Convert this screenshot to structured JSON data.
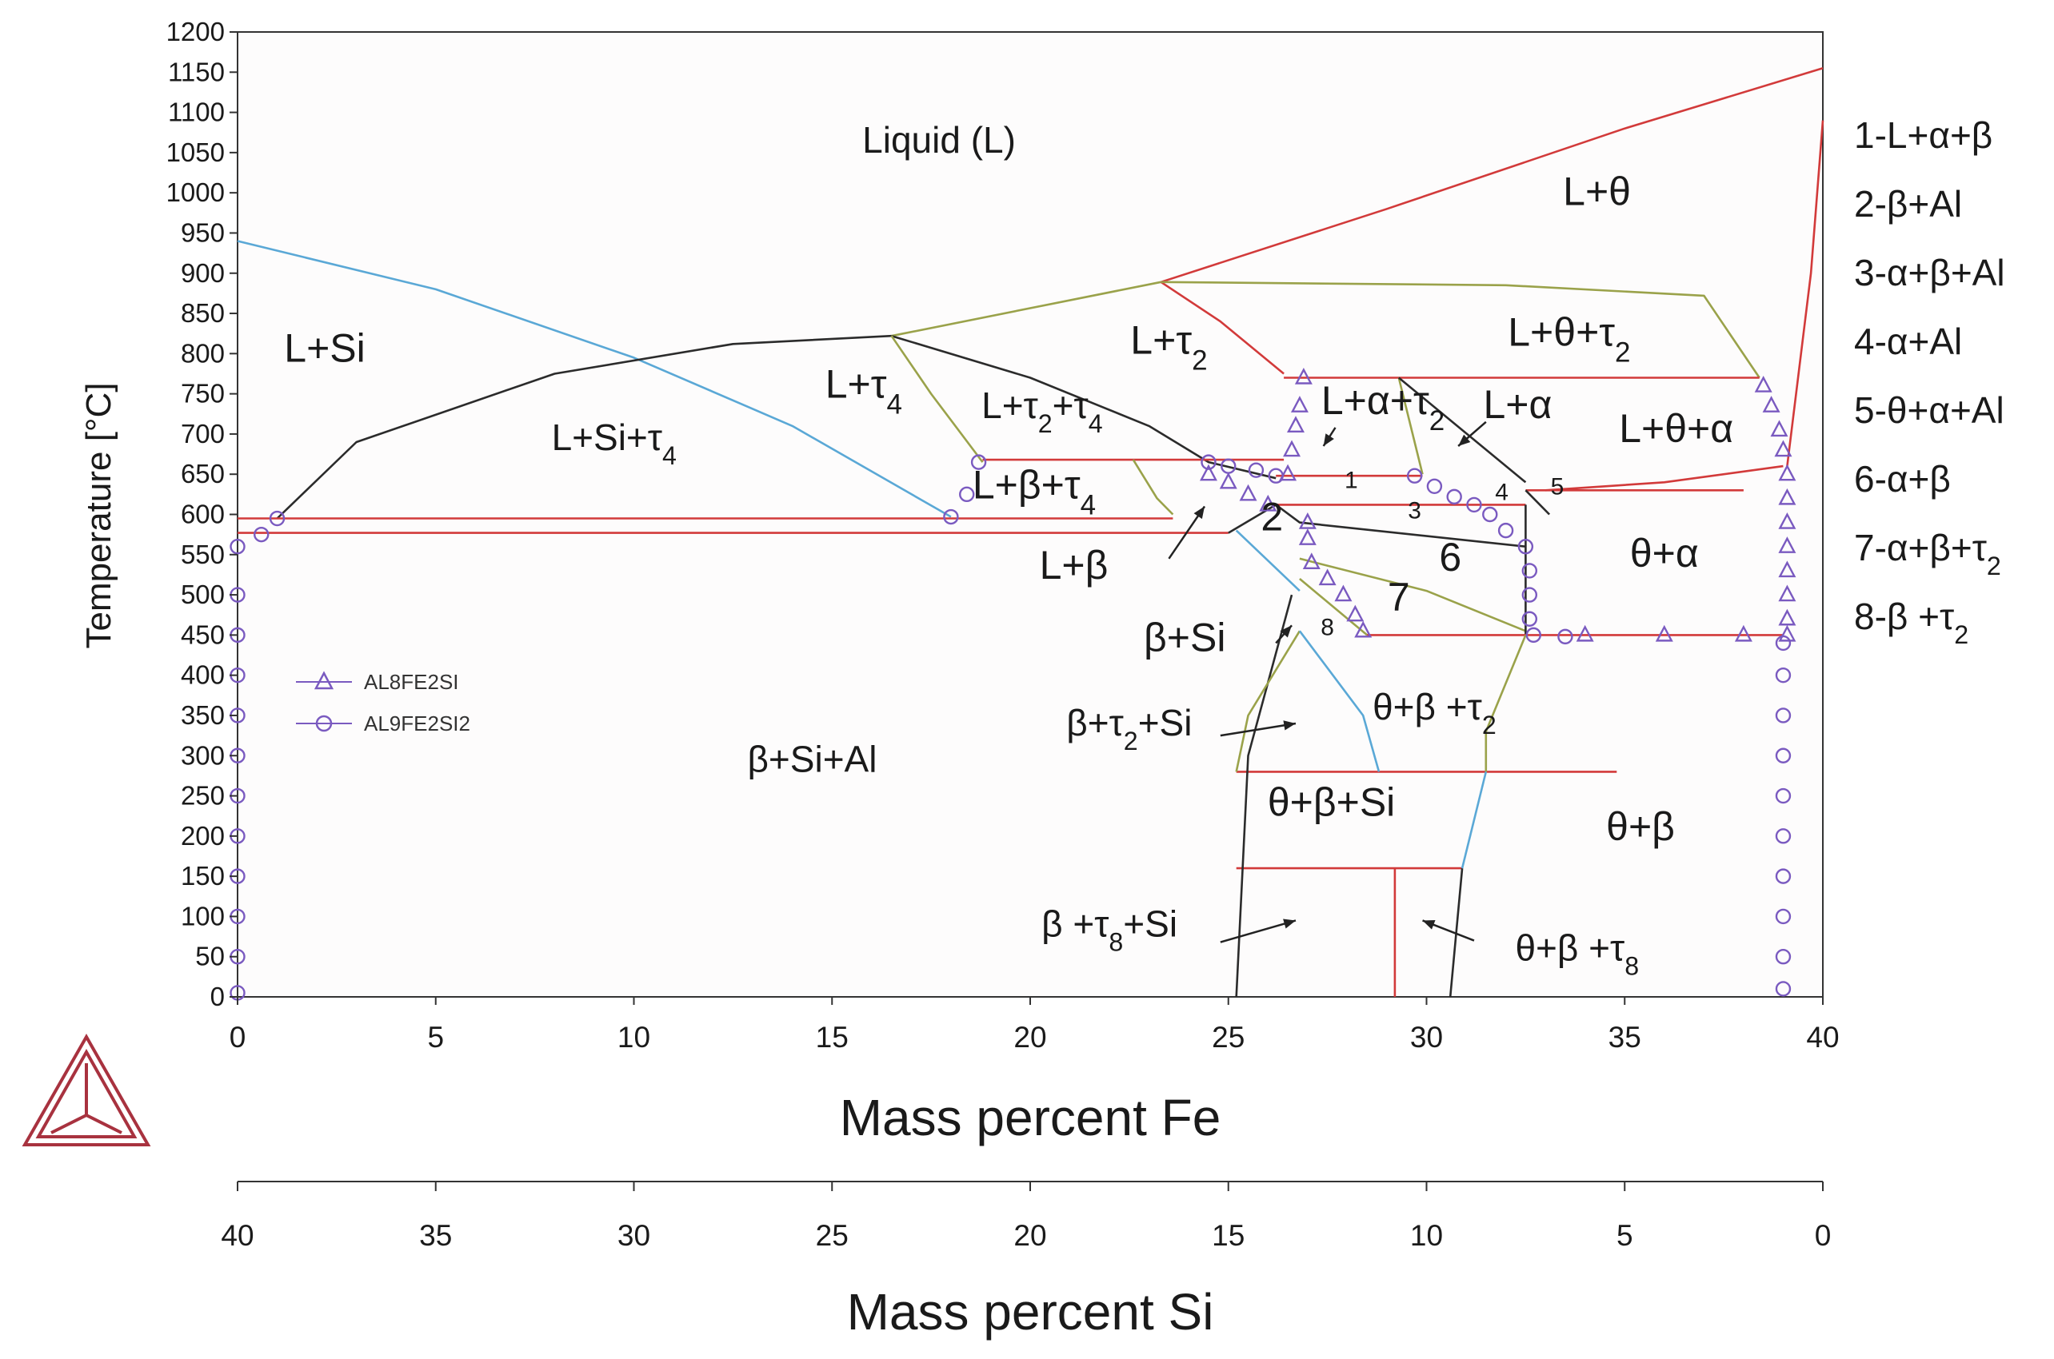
{
  "colors": {
    "frame": "#333333",
    "red": "#d23a3a",
    "blue": "#5aa8d6",
    "olive": "#9aa24a",
    "dark": "#2b2b2b",
    "purple": "#7a5ac0",
    "logo": "#a8323f"
  },
  "chart_data": {
    "type": "line",
    "title": "",
    "xlabel": "Mass percent Fe",
    "x2label": "Mass percent Si",
    "ylabel": "Temperature [°C]",
    "xlim": [
      0,
      40
    ],
    "ylim": [
      0,
      1200
    ],
    "x_ticks": [
      "0",
      "5",
      "10",
      "15",
      "20",
      "25",
      "30",
      "35",
      "40"
    ],
    "x2_ticks": [
      "40",
      "35",
      "30",
      "25",
      "20",
      "15",
      "10",
      "5",
      "0"
    ],
    "y_ticks": [
      "0",
      "50",
      "100",
      "150",
      "200",
      "250",
      "300",
      "350",
      "400",
      "450",
      "500",
      "550",
      "600",
      "650",
      "700",
      "750",
      "800",
      "850",
      "900",
      "950",
      "1000",
      "1050",
      "1100",
      "1150",
      "1200"
    ],
    "legend": [
      {
        "name": "AL8FE2SI",
        "marker": "triangle"
      },
      {
        "name": "AL9FE2SI2",
        "marker": "circle"
      }
    ],
    "series": [
      {
        "name": "liquidus-si",
        "color": "blue",
        "points": [
          [
            0,
            940
          ],
          [
            5,
            880
          ],
          [
            10,
            795
          ],
          [
            14,
            710
          ],
          [
            18,
            597
          ]
        ]
      },
      {
        "name": "l-si-t4",
        "color": "dark",
        "points": [
          [
            1,
            595
          ],
          [
            3,
            690
          ],
          [
            8,
            775
          ],
          [
            12.5,
            812
          ],
          [
            16.5,
            822
          ]
        ]
      },
      {
        "name": "liquidus-t4",
        "color": "olive",
        "points": [
          [
            16.5,
            822
          ],
          [
            23.3,
            889
          ]
        ]
      },
      {
        "name": "liquidus-t2",
        "color": "red",
        "points": [
          [
            23.3,
            889
          ],
          [
            29,
            980
          ],
          [
            35,
            1080
          ],
          [
            40,
            1155
          ]
        ]
      },
      {
        "name": "right-liquidus",
        "color": "red",
        "points": [
          [
            39.1,
            660
          ],
          [
            39.7,
            900
          ],
          [
            40,
            1090
          ]
        ]
      },
      {
        "name": "t2-l-boundary",
        "color": "red",
        "points": [
          [
            23.3,
            889
          ],
          [
            24.8,
            840
          ],
          [
            26.4,
            775
          ]
        ]
      },
      {
        "name": "l-theta-t2-top",
        "color": "olive",
        "points": [
          [
            23.3,
            889
          ],
          [
            32,
            885
          ],
          [
            37,
            872
          ],
          [
            38.4,
            770
          ]
        ]
      },
      {
        "name": "t4-t2-boundary",
        "color": "dark",
        "points": [
          [
            16.5,
            822
          ],
          [
            20,
            770
          ],
          [
            23,
            710
          ],
          [
            24.5,
            665
          ],
          [
            26.2,
            645
          ]
        ]
      },
      {
        "name": "t4-b",
        "color": "olive",
        "points": [
          [
            16.5,
            822
          ],
          [
            17.5,
            750
          ],
          [
            18.8,
            665
          ]
        ]
      },
      {
        "name": "horiz-668",
        "color": "red",
        "points": [
          [
            18.8,
            668
          ],
          [
            26.4,
            668
          ]
        ]
      },
      {
        "name": "l-beta-edge",
        "color": "olive",
        "points": [
          [
            22.6,
            668
          ],
          [
            23.2,
            620
          ],
          [
            23.6,
            600
          ]
        ]
      },
      {
        "name": "l-alpha-tie",
        "color": "red",
        "points": [
          [
            26.4,
            770
          ],
          [
            38.4,
            770
          ]
        ]
      },
      {
        "name": "alpha-l-1",
        "color": "olive",
        "points": [
          [
            29.3,
            770
          ],
          [
            29.9,
            650
          ]
        ]
      },
      {
        "name": "alpha-l-2",
        "color": "dark",
        "points": [
          [
            29.3,
            770
          ],
          [
            32.5,
            640
          ]
        ]
      },
      {
        "name": "horiz-648",
        "color": "red",
        "points": [
          [
            26.2,
            648
          ],
          [
            29.9,
            648
          ]
        ]
      },
      {
        "name": "horiz-630",
        "color": "red",
        "points": [
          [
            32.5,
            630
          ],
          [
            38,
            630
          ]
        ]
      },
      {
        "name": "theta-alpha-right",
        "color": "red",
        "points": [
          [
            33,
            630
          ],
          [
            36,
            640
          ],
          [
            39,
            660
          ]
        ]
      },
      {
        "name": "horiz-612",
        "color": "red",
        "points": [
          [
            26.2,
            612
          ],
          [
            32.5,
            612
          ]
        ]
      },
      {
        "name": "horiz-595",
        "color": "red",
        "points": [
          [
            0,
            595
          ],
          [
            23.6,
            595
          ]
        ]
      },
      {
        "name": "horiz-577",
        "color": "red",
        "points": [
          [
            0,
            577
          ],
          [
            25,
            577
          ]
        ]
      },
      {
        "name": "beta-si-blue",
        "color": "blue",
        "points": [
          [
            25.2,
            580
          ],
          [
            26.8,
            505
          ]
        ]
      },
      {
        "name": "phase-2-lines",
        "color": "dark",
        "points": [
          [
            25,
            577
          ],
          [
            26.2,
            612
          ],
          [
            26.8,
            590
          ],
          [
            32.5,
            560
          ]
        ]
      },
      {
        "name": "phase-6-lower",
        "color": "olive",
        "points": [
          [
            26.8,
            545
          ],
          [
            30,
            505
          ],
          [
            32.5,
            455
          ]
        ]
      },
      {
        "name": "phase-7-lower",
        "color": "olive",
        "points": [
          [
            26.8,
            520
          ],
          [
            28.5,
            450
          ]
        ]
      },
      {
        "name": "alpha-right-boundary",
        "color": "dark",
        "points": [
          [
            32.5,
            612
          ],
          [
            32.5,
            450
          ]
        ]
      },
      {
        "name": "alpha-right-2",
        "color": "dark",
        "points": [
          [
            32.5,
            630
          ],
          [
            33.1,
            600
          ]
        ]
      },
      {
        "name": "horiz-450",
        "color": "red",
        "points": [
          [
            28.5,
            450
          ],
          [
            39,
            450
          ]
        ]
      },
      {
        "name": "horiz-280",
        "color": "red",
        "points": [
          [
            25.2,
            280
          ],
          [
            34.8,
            280
          ]
        ]
      },
      {
        "name": "horiz-160",
        "color": "red",
        "points": [
          [
            25.2,
            160
          ],
          [
            30.9,
            160
          ]
        ]
      },
      {
        "name": "vert-25",
        "color": "dark",
        "points": [
          [
            26.6,
            500
          ],
          [
            25.5,
            300
          ],
          [
            25.2,
            0
          ]
        ]
      },
      {
        "name": "vert-29",
        "color": "red",
        "points": [
          [
            29.2,
            160
          ],
          [
            29.2,
            0
          ]
        ]
      },
      {
        "name": "vert-30-6",
        "color": "dark",
        "points": [
          [
            30.9,
            160
          ],
          [
            30.6,
            0
          ]
        ]
      },
      {
        "name": "t2-si-left",
        "color": "olive",
        "points": [
          [
            26.8,
            455
          ],
          [
            25.5,
            350
          ],
          [
            25.2,
            280
          ]
        ]
      },
      {
        "name": "t2-si-right",
        "color": "blue",
        "points": [
          [
            26.8,
            455
          ],
          [
            28.4,
            350
          ],
          [
            28.8,
            280
          ]
        ]
      },
      {
        "name": "theta-beta-t2-right",
        "color": "olive",
        "points": [
          [
            32.5,
            450
          ],
          [
            31.5,
            330
          ],
          [
            31.5,
            280
          ]
        ]
      },
      {
        "name": "theta-beta-blue",
        "color": "blue",
        "points": [
          [
            31.5,
            280
          ],
          [
            30.9,
            160
          ]
        ]
      }
    ],
    "markers": {
      "al8fe2si": [
        [
          24.5,
          650
        ],
        [
          25.0,
          640
        ],
        [
          25.5,
          625
        ],
        [
          26.0,
          612
        ],
        [
          26.5,
          650
        ],
        [
          26.6,
          680
        ],
        [
          26.7,
          710
        ],
        [
          26.8,
          735
        ],
        [
          26.9,
          770
        ],
        [
          27.0,
          590
        ],
        [
          27.0,
          570
        ],
        [
          27.1,
          540
        ],
        [
          27.5,
          520
        ],
        [
          27.9,
          500
        ],
        [
          28.2,
          475
        ],
        [
          28.4,
          455
        ],
        [
          34,
          450
        ],
        [
          36,
          450
        ],
        [
          38,
          450
        ],
        [
          38.5,
          760
        ],
        [
          38.7,
          735
        ],
        [
          38.9,
          705
        ],
        [
          39.0,
          680
        ],
        [
          39.1,
          650
        ],
        [
          39.1,
          620
        ],
        [
          39.1,
          590
        ],
        [
          39.1,
          560
        ],
        [
          39.1,
          530
        ],
        [
          39.1,
          500
        ],
        [
          39.1,
          470
        ],
        [
          39.1,
          450
        ]
      ],
      "al9fe2si2": [
        [
          0.6,
          575
        ],
        [
          1.0,
          595
        ],
        [
          18,
          597
        ],
        [
          18.4,
          625
        ],
        [
          18.7,
          665
        ],
        [
          24.5,
          665
        ],
        [
          25.0,
          660
        ],
        [
          25.7,
          655
        ],
        [
          26.2,
          648
        ],
        [
          29.7,
          648
        ],
        [
          30.2,
          635
        ],
        [
          30.7,
          622
        ],
        [
          31.2,
          612
        ],
        [
          31.6,
          600
        ],
        [
          32.0,
          580
        ],
        [
          32.5,
          560
        ],
        [
          32.6,
          530
        ],
        [
          32.6,
          500
        ],
        [
          32.6,
          470
        ],
        [
          32.7,
          450
        ],
        [
          33.5,
          448
        ],
        [
          39.0,
          440
        ],
        [
          39.0,
          400
        ],
        [
          39.0,
          350
        ],
        [
          39.0,
          300
        ],
        [
          39.0,
          250
        ],
        [
          39.0,
          200
        ],
        [
          39.0,
          150
        ],
        [
          39.0,
          100
        ],
        [
          39.0,
          50
        ],
        [
          39.0,
          10
        ],
        [
          0,
          560
        ],
        [
          0,
          500
        ],
        [
          0,
          450
        ],
        [
          0,
          400
        ],
        [
          0,
          350
        ],
        [
          0,
          300
        ],
        [
          0,
          250
        ],
        [
          0,
          200
        ],
        [
          0,
          150
        ],
        [
          0,
          100
        ],
        [
          0,
          50
        ],
        [
          0,
          5
        ]
      ]
    },
    "regions": [
      {
        "text": "Liquid (L)",
        "x": 17.7,
        "y": 1050
      },
      {
        "text": "L+θ",
        "x": 34.3,
        "y": 985
      },
      {
        "text": "L+Si",
        "x": 2.2,
        "y": 790
      },
      {
        "text": "L+Si+τ4",
        "x": 9.5,
        "y": 680
      },
      {
        "text": "L+τ4",
        "x": 15.8,
        "y": 745
      },
      {
        "text": "L+τ2",
        "x": 23.5,
        "y": 800
      },
      {
        "text": "L+τ2+τ4",
        "x": 20.3,
        "y": 720
      },
      {
        "text": "L+β+τ4",
        "x": 20.1,
        "y": 620
      },
      {
        "text": "L+θ+τ2",
        "x": 33.6,
        "y": 810
      },
      {
        "text": "L+α+τ2",
        "x": 28.9,
        "y": 725
      },
      {
        "text": "L+α",
        "x": 32.3,
        "y": 720
      },
      {
        "text": "L+θ+α",
        "x": 36.3,
        "y": 690
      },
      {
        "text": "L+β",
        "x": 21.1,
        "y": 520
      },
      {
        "text": "θ+α",
        "x": 36.0,
        "y": 535
      },
      {
        "text": "6",
        "x": 30.6,
        "y": 530
      },
      {
        "text": "7",
        "x": 29.3,
        "y": 480
      },
      {
        "text": "2",
        "x": 26.1,
        "y": 580
      },
      {
        "text": "β+Si",
        "x": 23.9,
        "y": 430
      },
      {
        "text": "β+τ2+Si",
        "x": 22.5,
        "y": 325
      },
      {
        "text": "θ+β +τ2",
        "x": 30.2,
        "y": 345
      },
      {
        "text": "β+Si+Al",
        "x": 14.5,
        "y": 280
      },
      {
        "text": "θ+β+Si",
        "x": 27.6,
        "y": 225
      },
      {
        "text": "θ+β",
        "x": 35.4,
        "y": 195
      },
      {
        "text": "β +τ8+Si",
        "x": 22.0,
        "y": 75
      },
      {
        "text": "θ+β +τ8",
        "x": 33.8,
        "y": 45
      }
    ],
    "small_labels": [
      {
        "text": "1",
        "x": 28.1,
        "y": 633
      },
      {
        "text": "3",
        "x": 29.7,
        "y": 595
      },
      {
        "text": "4",
        "x": 31.9,
        "y": 618
      },
      {
        "text": "5",
        "x": 33.3,
        "y": 625
      },
      {
        "text": "8",
        "x": 27.5,
        "y": 450
      }
    ],
    "arrows": [
      {
        "from": [
          23.5,
          545
        ],
        "to": [
          24.4,
          610
        ]
      },
      {
        "from": [
          27.7,
          708
        ],
        "to": [
          27.4,
          685
        ]
      },
      {
        "from": [
          31.5,
          715
        ],
        "to": [
          30.8,
          685
        ]
      },
      {
        "from": [
          26.2,
          440
        ],
        "to": [
          26.6,
          462
        ]
      },
      {
        "from": [
          24.8,
          325
        ],
        "to": [
          26.7,
          340
        ]
      },
      {
        "from": [
          24.8,
          68
        ],
        "to": [
          26.7,
          95
        ]
      },
      {
        "from": [
          31.2,
          70
        ],
        "to": [
          29.9,
          95
        ]
      }
    ],
    "side_legend": [
      "1-L+α+β",
      "2-β+Al",
      "3-α+β+Al",
      "4-α+Al",
      "5-θ+α+Al",
      "6-α+β",
      "7-α+β+τ2",
      "8-β +τ2"
    ]
  }
}
